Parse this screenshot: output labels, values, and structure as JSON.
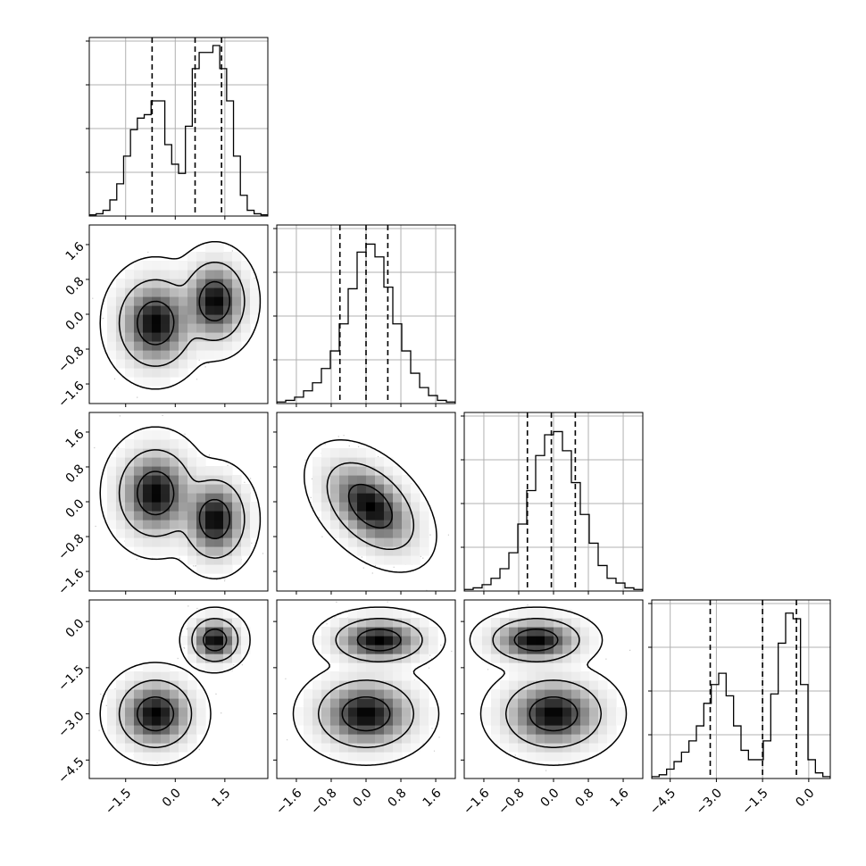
{
  "chart_data": {
    "type": "corner",
    "n_params": 4,
    "grid": true,
    "dimensions": [
      {
        "range": [
          -2.6,
          2.8
        ],
        "ticks": [
          -1.5,
          0.0,
          1.5
        ],
        "tick_labels": [
          "−1.5",
          "0.0",
          "1.5"
        ],
        "quantiles": [
          -0.7,
          0.6,
          1.4
        ],
        "hist": [
          0.01,
          0.02,
          0.05,
          0.14,
          0.28,
          0.52,
          0.75,
          0.85,
          0.88,
          1.0,
          1.0,
          0.62,
          0.45,
          0.37,
          0.78,
          1.28,
          1.42,
          1.42,
          1.48,
          1.28,
          1.0,
          0.52,
          0.18,
          0.05,
          0.02,
          0.01
        ],
        "hist_ymax": 1.55
      },
      {
        "range": [
          -2.05,
          2.05
        ],
        "ticks": [
          -1.6,
          -0.8,
          0.0,
          0.8,
          1.6
        ],
        "tick_labels": [
          "−1.6",
          "−0.8",
          "0.0",
          "0.8",
          "1.6"
        ],
        "quantiles": [
          -0.6,
          0.0,
          0.5
        ],
        "hist": [
          0.01,
          0.02,
          0.04,
          0.08,
          0.13,
          0.22,
          0.33,
          0.5,
          0.72,
          0.95,
          1.0,
          0.92,
          0.73,
          0.5,
          0.33,
          0.19,
          0.1,
          0.05,
          0.02,
          0.01
        ],
        "hist_ymax": 1.12
      },
      {
        "range": [
          -2.05,
          2.05
        ],
        "ticks": [
          -1.6,
          -0.8,
          0.0,
          0.8,
          1.6
        ],
        "tick_labels": [
          "−1.6",
          "−0.8",
          "0.0",
          "0.8",
          "1.6"
        ],
        "quantiles": [
          -0.6,
          -0.05,
          0.5
        ],
        "hist": [
          0.01,
          0.02,
          0.04,
          0.08,
          0.14,
          0.24,
          0.42,
          0.63,
          0.85,
          0.98,
          1.0,
          0.88,
          0.68,
          0.48,
          0.3,
          0.16,
          0.08,
          0.05,
          0.02,
          0.01
        ],
        "hist_ymax": 1.12
      },
      {
        "range": [
          -5.1,
          0.7
        ],
        "ticks": [
          -4.5,
          -3.0,
          -1.5,
          0.0
        ],
        "tick_labels": [
          "−4.5",
          "−3.0",
          "−1.5",
          "0.0"
        ],
        "quantiles": [
          -3.2,
          -1.5,
          -0.4
        ],
        "hist": [
          0.01,
          0.02,
          0.05,
          0.09,
          0.14,
          0.2,
          0.28,
          0.4,
          0.5,
          0.56,
          0.44,
          0.28,
          0.15,
          0.1,
          0.1,
          0.2,
          0.45,
          0.72,
          0.88,
          0.85,
          0.5,
          0.1,
          0.03,
          0.01
        ],
        "hist_ymax": 0.95
      }
    ],
    "pairs": [
      {
        "x_dim": 0,
        "y_dim": 1,
        "modes": [
          {
            "center": [
              -0.6,
              -0.2
            ],
            "sigma": [
              0.55,
              0.5
            ],
            "rho": 0.0,
            "weight": 0.5
          },
          {
            "center": [
              1.2,
              0.3
            ],
            "sigma": [
              0.45,
              0.45
            ],
            "rho": 0.0,
            "weight": 0.5
          }
        ]
      },
      {
        "x_dim": 0,
        "y_dim": 2,
        "modes": [
          {
            "center": [
              -0.6,
              0.2
            ],
            "sigma": [
              0.55,
              0.5
            ],
            "rho": 0.0,
            "weight": 0.5
          },
          {
            "center": [
              1.2,
              -0.4
            ],
            "sigma": [
              0.45,
              0.45
            ],
            "rho": 0.0,
            "weight": 0.5
          }
        ]
      },
      {
        "x_dim": 1,
        "y_dim": 2,
        "modes": [
          {
            "center": [
              0.1,
              -0.1
            ],
            "sigma": [
              0.5,
              0.5
            ],
            "rho": -0.45,
            "weight": 1.0
          }
        ]
      },
      {
        "x_dim": 0,
        "y_dim": 3,
        "modes": [
          {
            "center": [
              -0.6,
              -3.0
            ],
            "sigma": [
              0.55,
              0.55
            ],
            "rho": 0.0,
            "weight": 0.5
          },
          {
            "center": [
              1.2,
              -0.6
            ],
            "sigma": [
              0.35,
              0.35
            ],
            "rho": 0.0,
            "weight": 0.5
          }
        ]
      },
      {
        "x_dim": 1,
        "y_dim": 3,
        "modes": [
          {
            "center": [
              0.0,
              -3.0
            ],
            "sigma": [
              0.55,
              0.55
            ],
            "rho": 0.0,
            "weight": 0.5
          },
          {
            "center": [
              0.3,
              -0.6
            ],
            "sigma": [
              0.5,
              0.35
            ],
            "rho": 0.0,
            "weight": 0.5
          }
        ]
      },
      {
        "x_dim": 2,
        "y_dim": 3,
        "modes": [
          {
            "center": [
              -0.4,
              -0.6
            ],
            "sigma": [
              0.5,
              0.35
            ],
            "rho": 0.0,
            "weight": 0.5
          },
          {
            "center": [
              0.0,
              -3.0
            ],
            "sigma": [
              0.55,
              0.55
            ],
            "rho": 0.0,
            "weight": 0.5
          }
        ]
      }
    ],
    "contour_levels": [
      0.39,
      0.86,
      0.99
    ]
  }
}
